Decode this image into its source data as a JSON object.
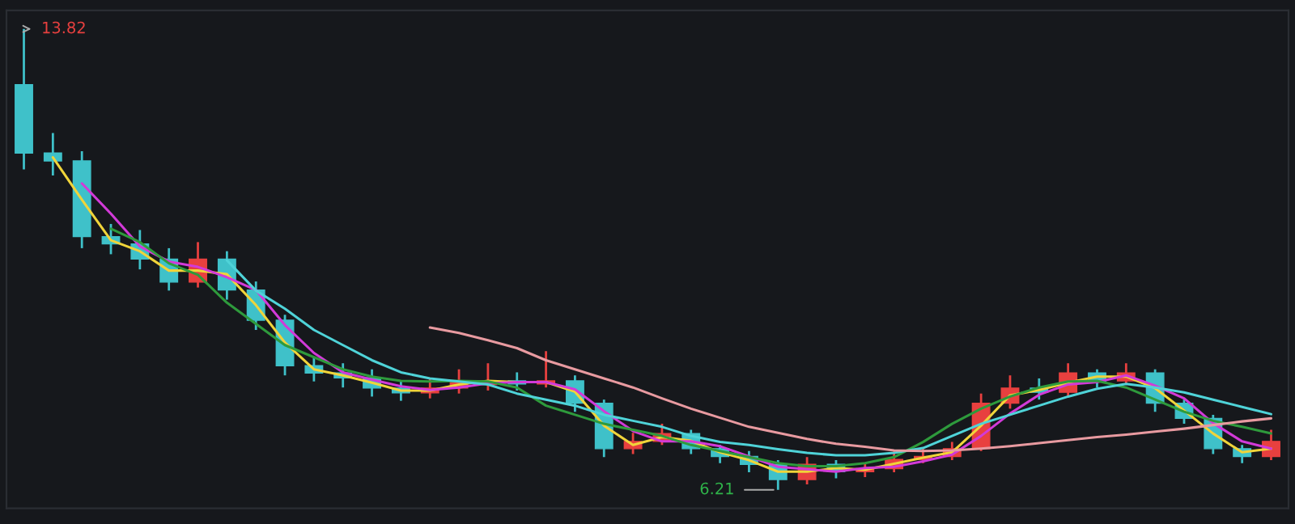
{
  "chart_data": {
    "type": "candlestick",
    "categories": [
      null,
      null,
      null,
      null,
      null,
      null,
      null,
      null,
      null,
      null,
      null,
      null,
      null,
      null,
      null,
      null,
      null,
      null,
      null,
      null,
      null,
      null,
      null,
      null,
      null,
      null,
      null,
      null,
      null,
      null,
      null,
      null,
      null,
      null,
      null,
      null,
      null,
      null,
      null,
      null,
      null,
      null,
      null,
      null
    ],
    "ohlc": [
      [
        12.9,
        13.82,
        11.5,
        11.77
      ],
      [
        11.77,
        12.1,
        11.4,
        11.64
      ],
      [
        11.64,
        11.8,
        10.2,
        10.39
      ],
      [
        10.39,
        10.6,
        10.1,
        10.27
      ],
      [
        10.27,
        10.5,
        9.85,
        10.02
      ],
      [
        10.02,
        10.2,
        9.5,
        9.64
      ],
      [
        9.64,
        10.3,
        9.55,
        10.02
      ],
      [
        10.02,
        10.15,
        9.35,
        9.51
      ],
      [
        9.51,
        9.65,
        8.85,
        9.01
      ],
      [
        9.01,
        9.1,
        8.1,
        8.26
      ],
      [
        8.26,
        8.4,
        8.0,
        8.14
      ],
      [
        8.14,
        8.3,
        7.9,
        8.06
      ],
      [
        8.06,
        8.2,
        7.75,
        7.89
      ],
      [
        7.89,
        8.0,
        7.68,
        7.81
      ],
      [
        7.81,
        8.05,
        7.72,
        7.89
      ],
      [
        7.89,
        8.2,
        7.8,
        8.01
      ],
      [
        7.95,
        8.3,
        7.85,
        8.01
      ],
      [
        8.01,
        8.15,
        7.85,
        7.96
      ],
      [
        7.96,
        8.5,
        7.9,
        8.01
      ],
      [
        8.01,
        8.1,
        7.5,
        7.64
      ],
      [
        7.64,
        7.7,
        6.75,
        6.89
      ],
      [
        6.89,
        7.15,
        6.8,
        7.01
      ],
      [
        7.01,
        7.3,
        6.95,
        7.14
      ],
      [
        7.14,
        7.2,
        6.8,
        6.89
      ],
      [
        6.89,
        6.95,
        6.65,
        6.76
      ],
      [
        6.76,
        6.85,
        6.5,
        6.63
      ],
      [
        6.63,
        6.7,
        6.21,
        6.38
      ],
      [
        6.38,
        6.75,
        6.3,
        6.63
      ],
      [
        6.63,
        6.7,
        6.4,
        6.51
      ],
      [
        6.51,
        6.65,
        6.42,
        6.56
      ],
      [
        6.56,
        6.85,
        6.5,
        6.71
      ],
      [
        6.71,
        6.9,
        6.65,
        6.76
      ],
      [
        6.76,
        7.0,
        6.7,
        6.89
      ],
      [
        6.89,
        7.8,
        6.85,
        7.64
      ],
      [
        7.64,
        8.1,
        7.55,
        7.89
      ],
      [
        7.89,
        8.05,
        7.7,
        7.82
      ],
      [
        7.82,
        8.3,
        7.75,
        8.14
      ],
      [
        8.14,
        8.2,
        7.9,
        8.01
      ],
      [
        8.01,
        8.3,
        7.95,
        8.14
      ],
      [
        8.14,
        8.2,
        7.5,
        7.64
      ],
      [
        7.64,
        7.7,
        7.3,
        7.39
      ],
      [
        7.39,
        7.45,
        6.8,
        6.89
      ],
      [
        6.89,
        6.95,
        6.65,
        6.76
      ],
      [
        6.76,
        7.2,
        6.7,
        7.01
      ]
    ],
    "colors": [
      "#3fc1c9",
      "#3fc1c9",
      "#3fc1c9",
      "#3fc1c9",
      "#3fc1c9",
      "#3fc1c9",
      "#e8403f",
      "#3fc1c9",
      "#3fc1c9",
      "#3fc1c9",
      "#3fc1c9",
      "#3fc1c9",
      "#3fc1c9",
      "#3fc1c9",
      "#e8403f",
      "#e8403f",
      "#e8403f",
      "#3fc1c9",
      "#e8403f",
      "#3fc1c9",
      "#3fc1c9",
      "#e8403f",
      "#e8403f",
      "#3fc1c9",
      "#3fc1c9",
      "#3fc1c9",
      "#3fc1c9",
      "#e8403f",
      "#3fc1c9",
      "#e8403f",
      "#e8403f",
      "#e8403f",
      "#e8403f",
      "#e8403f",
      "#e8403f",
      "#3fc1c9",
      "#e8403f",
      "#3fc1c9",
      "#e8403f",
      "#3fc1c9",
      "#3fc1c9",
      "#3fc1c9",
      "#3fc1c9",
      "#e8403f"
    ],
    "series": [
      {
        "type": "line",
        "color": "#f0d43a",
        "values": [
          null,
          11.7,
          11.0,
          10.33,
          10.15,
          9.83,
          9.83,
          9.77,
          9.26,
          8.64,
          8.2,
          8.1,
          7.98,
          7.85,
          7.85,
          7.95,
          8.01,
          7.99,
          7.99,
          7.83,
          7.27,
          6.95,
          7.08,
          7.02,
          6.83,
          6.7,
          6.51,
          6.51,
          6.57,
          6.54,
          6.64,
          6.74,
          6.83,
          7.27,
          7.77,
          7.86,
          7.98,
          8.08,
          8.08,
          7.89,
          7.52,
          7.14,
          6.83,
          6.89
        ]
      },
      {
        "type": "line",
        "color": "#d23ad8",
        "values": [
          null,
          null,
          11.27,
          10.77,
          10.23,
          9.98,
          9.89,
          9.72,
          9.51,
          8.93,
          8.47,
          8.15,
          8.03,
          7.92,
          7.86,
          7.9,
          7.97,
          7.99,
          7.99,
          7.87,
          7.51,
          7.18,
          7.01,
          7.01,
          6.93,
          6.76,
          6.59,
          6.55,
          6.51,
          6.57,
          6.59,
          6.68,
          6.79,
          7.1,
          7.47,
          7.78,
          7.95,
          7.99,
          8.1,
          7.93,
          7.72,
          7.31,
          7.01,
          6.89
        ]
      },
      {
        "type": "line",
        "color": "#2e9a3c",
        "values": [
          null,
          null,
          null,
          10.52,
          10.3,
          9.95,
          9.76,
          9.3,
          8.95,
          8.6,
          8.4,
          8.2,
          8.08,
          8.01,
          8.0,
          8.01,
          8.0,
          7.9,
          7.6,
          7.45,
          7.3,
          7.2,
          7.1,
          6.95,
          6.85,
          6.75,
          6.65,
          6.6,
          6.6,
          6.65,
          6.75,
          7.0,
          7.3,
          7.55,
          7.75,
          7.9,
          8.0,
          8.01,
          7.9,
          7.7,
          7.5,
          7.35,
          7.25,
          7.14
        ]
      },
      {
        "type": "line",
        "color": "#4fd3d8",
        "values": [
          null,
          null,
          null,
          null,
          null,
          null,
          null,
          10.0,
          9.5,
          9.2,
          8.85,
          8.6,
          8.35,
          8.15,
          8.05,
          8.0,
          7.95,
          7.8,
          7.7,
          7.6,
          7.45,
          7.35,
          7.25,
          7.1,
          7.0,
          6.95,
          6.88,
          6.82,
          6.78,
          6.78,
          6.82,
          6.9,
          7.1,
          7.3,
          7.45,
          7.6,
          7.75,
          7.88,
          7.96,
          7.9,
          7.82,
          7.7,
          7.58,
          7.46
        ]
      },
      {
        "type": "line",
        "color": "#e89aa0",
        "values": [
          null,
          null,
          null,
          null,
          null,
          null,
          null,
          null,
          null,
          null,
          null,
          null,
          null,
          null,
          8.89,
          8.8,
          8.68,
          8.55,
          8.35,
          8.2,
          8.05,
          7.9,
          7.72,
          7.55,
          7.4,
          7.25,
          7.15,
          7.05,
          6.97,
          6.92,
          6.86,
          6.85,
          6.86,
          6.89,
          6.93,
          6.98,
          7.03,
          7.08,
          7.12,
          7.17,
          7.22,
          7.28,
          7.34,
          7.39
        ]
      }
    ],
    "annotations": [
      "13.82",
      "6.21"
    ],
    "grid": false,
    "legend": false
  }
}
